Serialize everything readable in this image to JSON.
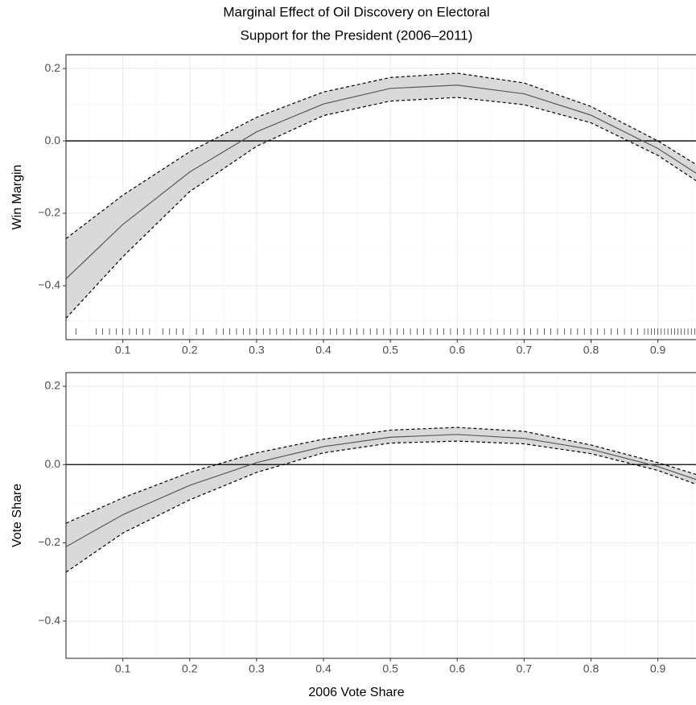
{
  "title": [
    "Marginal Effect of Oil Discovery on Electoral",
    "Support for the President (2006–2011)"
  ],
  "x_label": "2006 Vote Share",
  "chart_data": [
    {
      "type": "line",
      "y_label": "Win Margin",
      "x": [
        0.015,
        0.1,
        0.2,
        0.3,
        0.4,
        0.5,
        0.6,
        0.7,
        0.8,
        0.9,
        0.957
      ],
      "values": [
        -0.381,
        -0.231,
        -0.086,
        0.025,
        0.102,
        0.145,
        0.154,
        0.13,
        0.071,
        -0.021,
        -0.089
      ],
      "ci_lower": [
        -0.49,
        -0.32,
        -0.14,
        -0.015,
        0.07,
        0.11,
        0.12,
        0.1,
        0.05,
        -0.04,
        -0.11
      ],
      "ci_upper": [
        -0.27,
        -0.15,
        -0.03,
        0.065,
        0.135,
        0.175,
        0.187,
        0.16,
        0.095,
        0.0,
        -0.065
      ],
      "color": "#595959",
      "band_color": "#d9d9d9",
      "hline": 0,
      "xlim": [
        0.015,
        0.957
      ],
      "ylim": [
        -0.549,
        0.238
      ],
      "xticks": [
        0.1,
        0.2,
        0.3,
        0.4,
        0.5,
        0.6,
        0.7,
        0.8,
        0.9
      ],
      "yticks": [
        {
          "value": -0.4,
          "label": "−0.4"
        },
        {
          "value": -0.2,
          "label": "−0.2"
        },
        {
          "value": 0,
          "label": "0.0"
        },
        0.2
      ],
      "grid": true,
      "rug": [
        0.03,
        0.06,
        0.07,
        0.08,
        0.09,
        0.1,
        0.11,
        0.12,
        0.13,
        0.14,
        0.16,
        0.17,
        0.18,
        0.19,
        0.21,
        0.22,
        0.24,
        0.25,
        0.26,
        0.27,
        0.28,
        0.29,
        0.3,
        0.31,
        0.32,
        0.33,
        0.34,
        0.35,
        0.36,
        0.37,
        0.38,
        0.39,
        0.4,
        0.41,
        0.42,
        0.43,
        0.44,
        0.45,
        0.46,
        0.47,
        0.48,
        0.49,
        0.5,
        0.51,
        0.52,
        0.53,
        0.54,
        0.55,
        0.56,
        0.57,
        0.58,
        0.59,
        0.6,
        0.61,
        0.62,
        0.63,
        0.64,
        0.65,
        0.66,
        0.67,
        0.68,
        0.69,
        0.7,
        0.71,
        0.72,
        0.73,
        0.74,
        0.75,
        0.76,
        0.77,
        0.78,
        0.79,
        0.8,
        0.81,
        0.82,
        0.83,
        0.84,
        0.85,
        0.86,
        0.87,
        0.88,
        0.885,
        0.89,
        0.895,
        0.9,
        0.905,
        0.91,
        0.915,
        0.92,
        0.925,
        0.93,
        0.935,
        0.94,
        0.945,
        0.95,
        0.955
      ]
    },
    {
      "type": "line",
      "y_label": "Vote Share",
      "x": [
        0.015,
        0.1,
        0.2,
        0.3,
        0.4,
        0.5,
        0.6,
        0.7,
        0.8,
        0.9,
        0.957
      ],
      "values": [
        -0.21,
        -0.128,
        -0.053,
        0.005,
        0.046,
        0.07,
        0.077,
        0.067,
        0.039,
        -0.005,
        -0.038
      ],
      "ci_lower": [
        -0.275,
        -0.175,
        -0.09,
        -0.02,
        0.03,
        0.055,
        0.06,
        0.053,
        0.028,
        -0.015,
        -0.05
      ],
      "ci_upper": [
        -0.15,
        -0.085,
        -0.02,
        0.03,
        0.065,
        0.088,
        0.095,
        0.085,
        0.05,
        0.005,
        -0.025
      ],
      "color": "#595959",
      "band_color": "#d9d9d9",
      "hline": 0,
      "xlim": [
        0.015,
        0.957
      ],
      "ylim": [
        -0.495,
        0.235
      ],
      "xticks": [
        0.1,
        0.2,
        0.3,
        0.4,
        0.5,
        0.6,
        0.7,
        0.8,
        0.9
      ],
      "yticks": [
        {
          "value": -0.4,
          "label": "−0.4"
        },
        {
          "value": -0.2,
          "label": "−0.2"
        },
        {
          "value": 0,
          "label": "0.0"
        },
        0.2
      ],
      "grid": true
    }
  ]
}
